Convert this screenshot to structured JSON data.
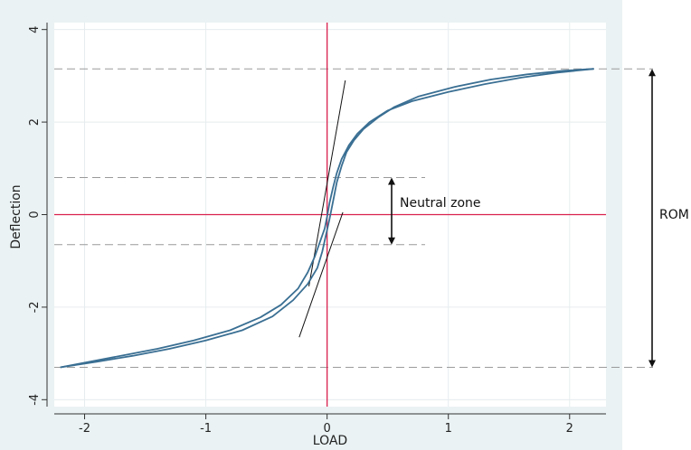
{
  "chart_data": {
    "type": "line",
    "title": "",
    "xlabel": "LOAD",
    "ylabel": "Deflection",
    "xlim": [
      -2.25,
      2.3
    ],
    "ylim": [
      -4.15,
      4.15
    ],
    "xticks": [
      "-2",
      "-1",
      "0",
      "1",
      "2"
    ],
    "yticks": [
      "-4",
      "-2",
      "0",
      "2",
      "4"
    ],
    "grid": true,
    "colors": {
      "curve": "#3a6f93",
      "reference": "#d9214e",
      "plot_bg": "#ffffff",
      "outer_bg": "#eaf2f3",
      "grid": "#e6ecee",
      "dashed": "#9a9a9a"
    },
    "series": [
      {
        "x": [
          -2.2,
          -2.0,
          -1.7,
          -1.4,
          -1.1,
          -0.8,
          -0.55,
          -0.38,
          -0.24,
          -0.16,
          -0.1,
          -0.06,
          -0.02,
          0.0,
          0.02,
          0.05,
          0.08,
          0.12,
          0.18,
          0.25,
          0.35,
          0.5,
          0.7,
          1.0,
          1.3,
          1.6,
          1.9,
          2.2
        ],
        "y": [
          -3.3,
          -3.2,
          -3.05,
          -2.9,
          -2.72,
          -2.5,
          -2.22,
          -1.95,
          -1.6,
          -1.25,
          -0.9,
          -0.6,
          -0.3,
          -0.05,
          0.25,
          0.6,
          0.9,
          1.2,
          1.5,
          1.75,
          2.0,
          2.25,
          2.45,
          2.65,
          2.82,
          2.96,
          3.07,
          3.15
        ]
      },
      {
        "x": [
          -2.2,
          -1.9,
          -1.6,
          -1.3,
          -1.0,
          -0.7,
          -0.45,
          -0.28,
          -0.16,
          -0.08,
          -0.04,
          -0.01,
          0.02,
          0.05,
          0.08,
          0.12,
          0.16,
          0.22,
          0.3,
          0.42,
          0.55,
          0.75,
          1.05,
          1.35,
          1.65,
          1.95,
          2.2
        ],
        "y": [
          -3.3,
          -3.18,
          -3.05,
          -2.9,
          -2.72,
          -2.5,
          -2.2,
          -1.85,
          -1.5,
          -1.15,
          -0.8,
          -0.45,
          -0.1,
          0.3,
          0.7,
          1.05,
          1.35,
          1.6,
          1.85,
          2.1,
          2.32,
          2.55,
          2.76,
          2.92,
          3.03,
          3.11,
          3.15
        ]
      }
    ],
    "tangent_lines": [
      {
        "x": [
          -0.15,
          0.15
        ],
        "y": [
          -1.55,
          2.9
        ]
      },
      {
        "x": [
          -0.23,
          0.13
        ],
        "y": [
          -2.65,
          0.05
        ]
      }
    ],
    "reference_lines": {
      "x": 0,
      "y": 0
    },
    "dashed_levels": [
      3.15,
      0.8,
      -0.65,
      -3.3
    ],
    "annotations": {
      "neutral_zone": {
        "label": "Neutral zone",
        "from": -0.65,
        "to": 0.8
      },
      "rom": {
        "label": "ROM",
        "from": -3.3,
        "to": 3.15
      }
    }
  }
}
